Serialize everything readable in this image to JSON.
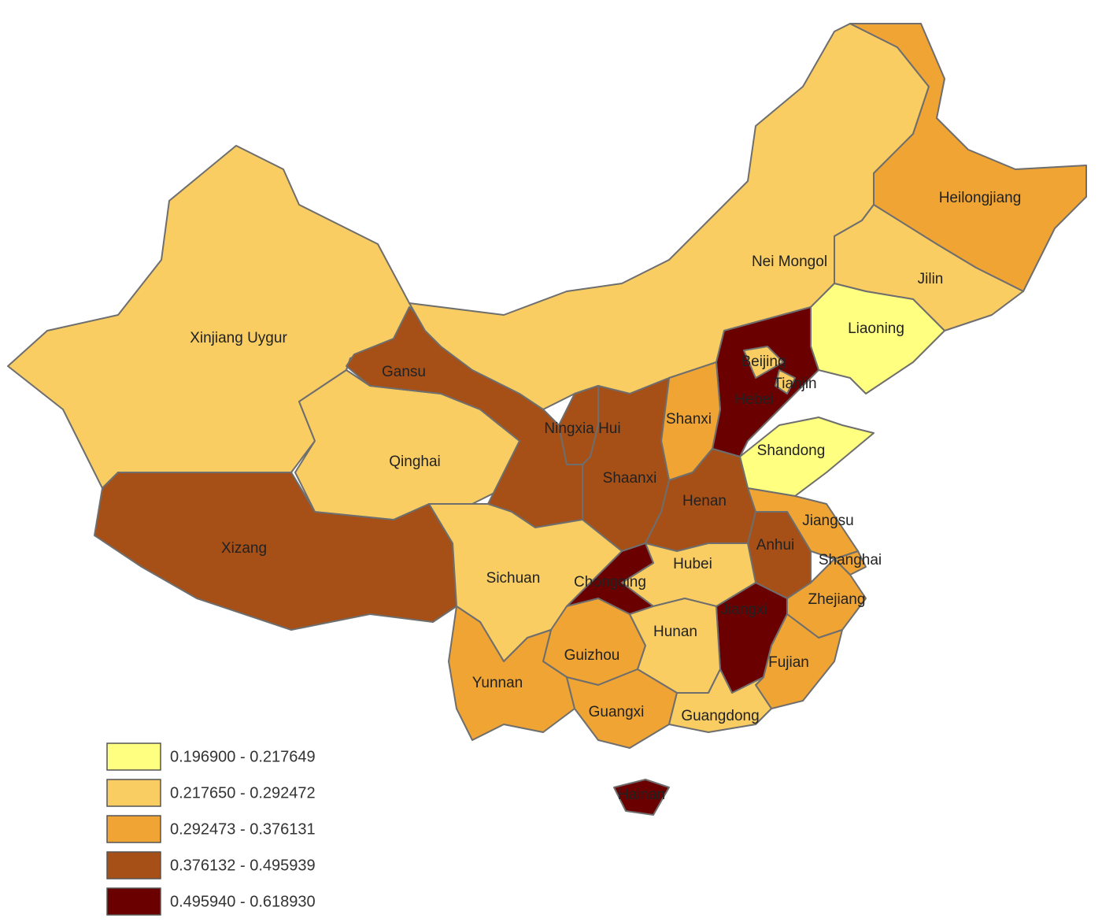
{
  "regions": [
    {
      "name": "Xinjiang Uygur",
      "color": "#f9cd62"
    },
    {
      "name": "Xizang",
      "color": "#a64f16"
    },
    {
      "name": "Qinghai",
      "color": "#f9cd62"
    },
    {
      "name": "Gansu",
      "color": "#a64f16"
    },
    {
      "name": "Nei Mongol",
      "color": "#f9cd62"
    },
    {
      "name": "Heilongjiang",
      "color": "#efa433"
    },
    {
      "name": "Jilin",
      "color": "#f9cd62"
    },
    {
      "name": "Liaoning",
      "color": "#ffff80"
    },
    {
      "name": "Hebei",
      "color": "#6b0000"
    },
    {
      "name": "Beijing",
      "color": "#f9cd62"
    },
    {
      "name": "Tianjin",
      "color": "#f9cd62"
    },
    {
      "name": "Shanxi",
      "color": "#efa433"
    },
    {
      "name": "Shandong",
      "color": "#ffff80"
    },
    {
      "name": "Ningxia Hui",
      "color": "#a64f16"
    },
    {
      "name": "Shaanxi",
      "color": "#a64f16"
    },
    {
      "name": "Henan",
      "color": "#a64f16"
    },
    {
      "name": "Jiangsu",
      "color": "#efa433"
    },
    {
      "name": "Anhui",
      "color": "#a64f16"
    },
    {
      "name": "Shanghai",
      "color": "#efa433"
    },
    {
      "name": "Zhejiang",
      "color": "#efa433"
    },
    {
      "name": "Jiangxi",
      "color": "#6b0000"
    },
    {
      "name": "Fujian",
      "color": "#efa433"
    },
    {
      "name": "Hubei",
      "color": "#f9cd62"
    },
    {
      "name": "Chongqing",
      "color": "#6b0000"
    },
    {
      "name": "Sichuan",
      "color": "#f9cd62"
    },
    {
      "name": "Guizhou",
      "color": "#efa433"
    },
    {
      "name": "Hunan",
      "color": "#f9cd62"
    },
    {
      "name": "Yunnan",
      "color": "#efa433"
    },
    {
      "name": "Guangxi",
      "color": "#efa433"
    },
    {
      "name": "Guangdong",
      "color": "#f9cd62"
    },
    {
      "name": "Hainan",
      "color": "#6b0000"
    }
  ],
  "legend": [
    {
      "label": "0.196900 - 0.217649",
      "color": "#ffff80"
    },
    {
      "label": "0.217650 - 0.292472",
      "color": "#f9cd62"
    },
    {
      "label": "0.292473 - 0.376131",
      "color": "#efa433"
    },
    {
      "label": "0.376132 - 0.495939",
      "color": "#a64f16"
    },
    {
      "label": "0.495940 - 0.618930",
      "color": "#6b0000"
    }
  ]
}
